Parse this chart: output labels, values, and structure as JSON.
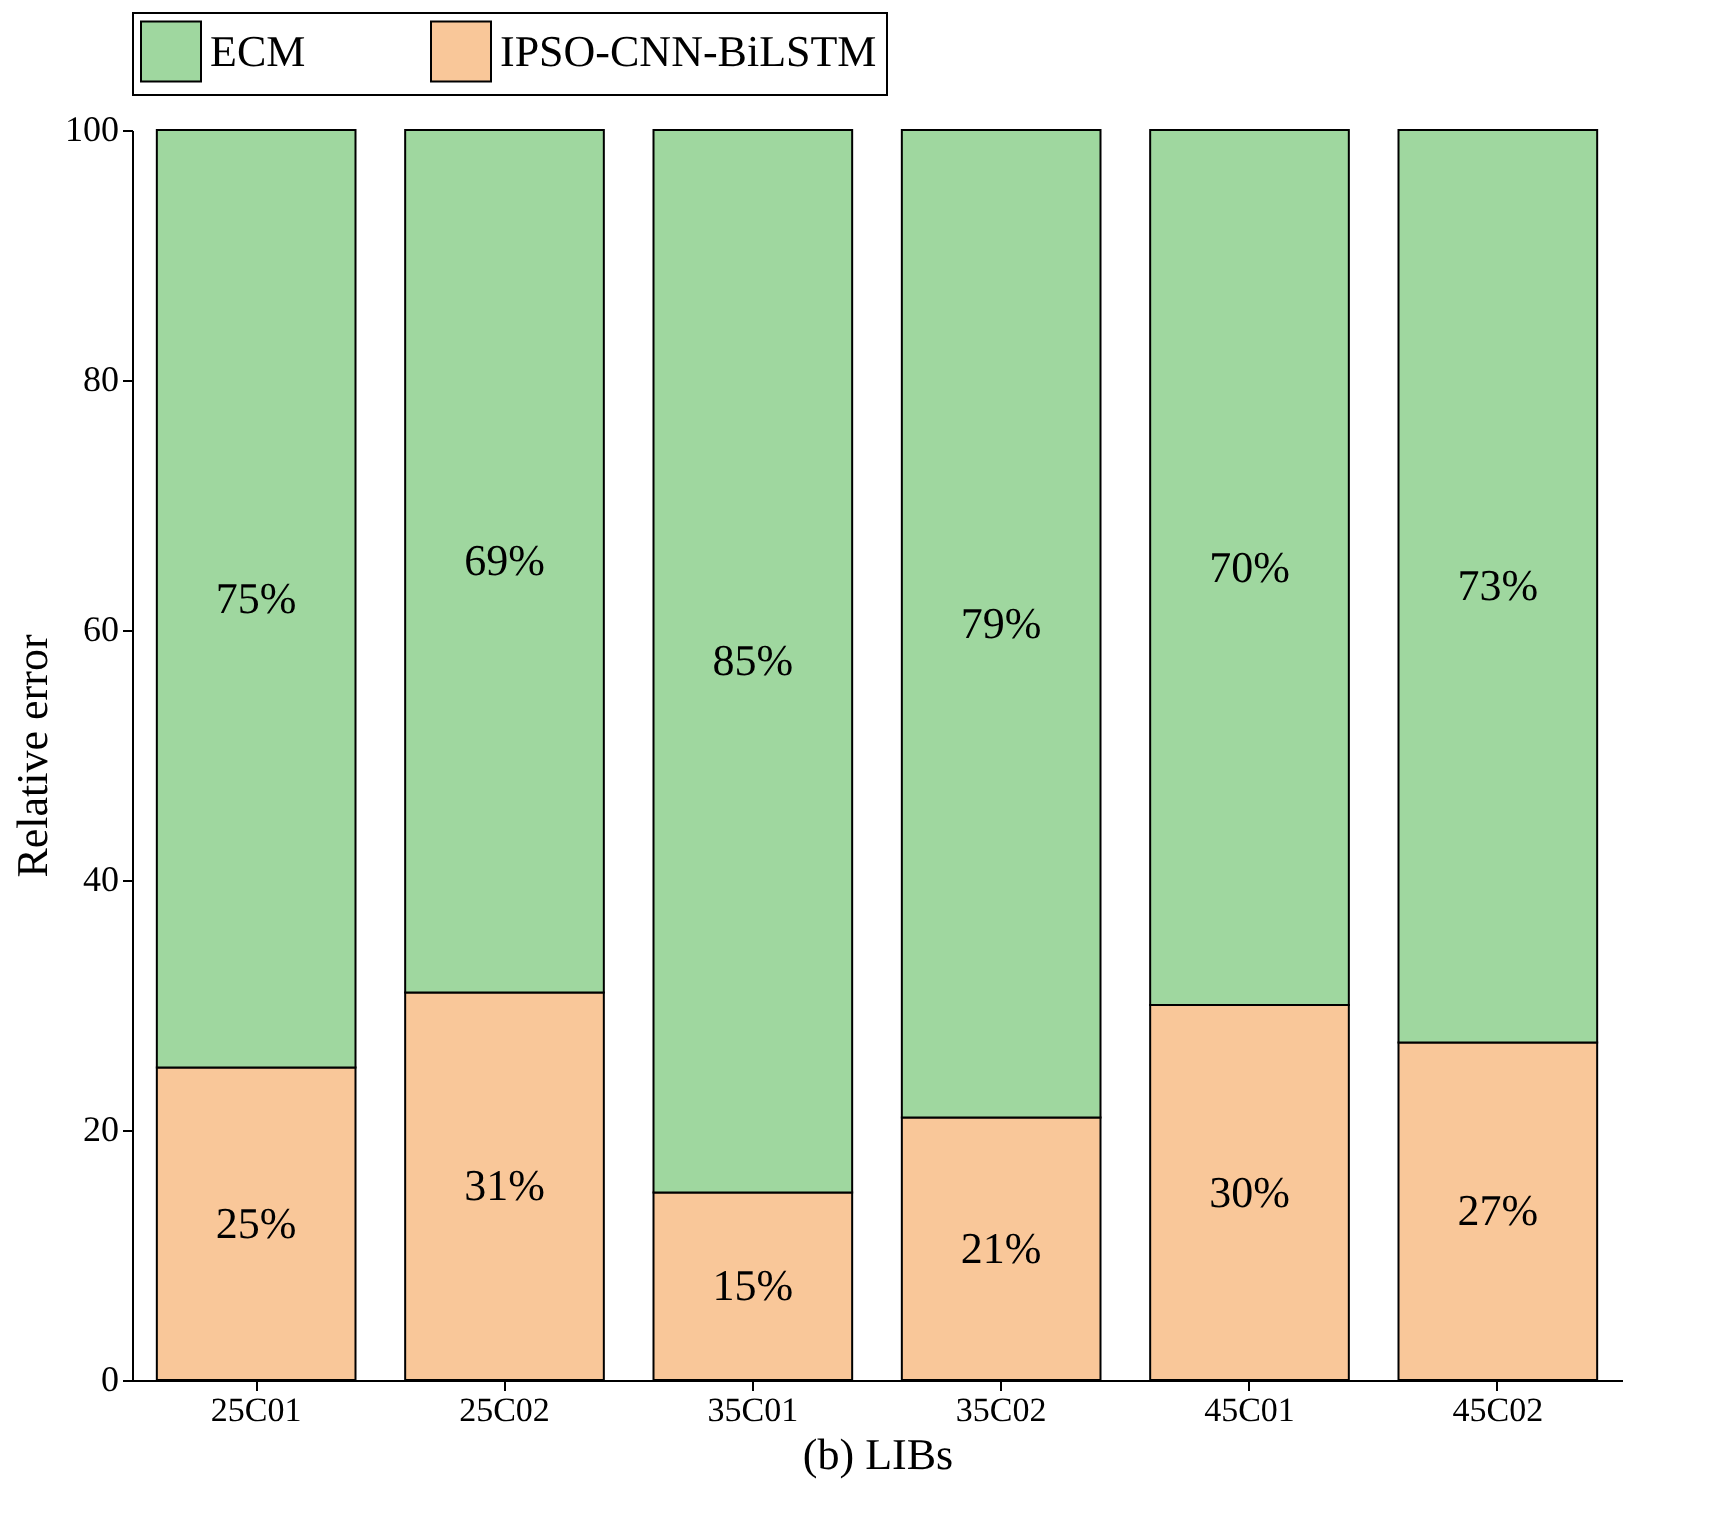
{
  "chart_data": {
    "type": "bar",
    "stacked": true,
    "xlabel": "(b) LIBs",
    "ylabel": "Relative error",
    "categories": [
      "25C01",
      "25C02",
      "35C01",
      "35C02",
      "45C01",
      "45C02"
    ],
    "series": [
      {
        "name": "IPSO-CNN-BiLSTM",
        "color": "#f9c799",
        "values": [
          25,
          31,
          15,
          21,
          30,
          27
        ],
        "value_labels": [
          "25%",
          "31%",
          "15%",
          "21%",
          "30%",
          "27%"
        ]
      },
      {
        "name": "ECM",
        "color": "#9fd79f",
        "values": [
          75,
          69,
          85,
          79,
          70,
          73
        ],
        "value_labels": [
          "75%",
          "69%",
          "85%",
          "79%",
          "70%",
          "73%"
        ]
      }
    ],
    "ylim": [
      0,
      100
    ],
    "yticks": [
      0,
      20,
      40,
      60,
      80,
      100
    ],
    "grid": false,
    "legend": "top"
  }
}
